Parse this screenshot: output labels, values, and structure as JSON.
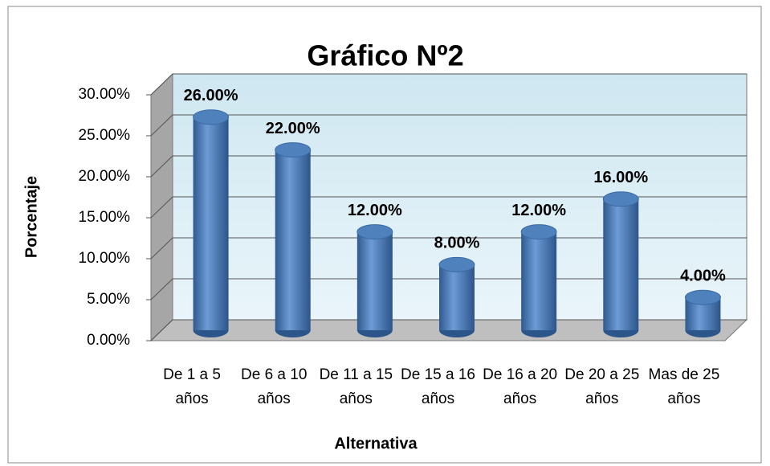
{
  "chart_data": {
    "type": "bar",
    "title": "Gráfico Nº2",
    "x_label": "Alternativa",
    "y_label": "Porcentaje",
    "categories": [
      "De 1 a 5 años",
      "De 6 a 10 años",
      "De 11 a 15 años",
      "De 15 a 16 años",
      "De 16 a 20 años",
      "De 20 a 25 años",
      "Mas de 25 años"
    ],
    "values": [
      26,
      22,
      12,
      8,
      12,
      16,
      4
    ],
    "value_labels": [
      "26.00%",
      "22.00%",
      "12.00%",
      "8.00%",
      "12.00%",
      "16.00%",
      "4.00%"
    ],
    "color": "#4f81bd",
    "ylim": [
      0,
      30
    ],
    "yticks": [
      {
        "value": 0,
        "label": "0.00%"
      },
      {
        "value": 5,
        "label": "5.00%"
      },
      {
        "value": 10,
        "label": "10.00%"
      },
      {
        "value": 15,
        "label": "15.00%"
      },
      {
        "value": 20,
        "label": "20.00%"
      },
      {
        "value": 25,
        "label": "25.00%"
      },
      {
        "value": 30,
        "label": "30.00%"
      }
    ],
    "grid": true
  }
}
